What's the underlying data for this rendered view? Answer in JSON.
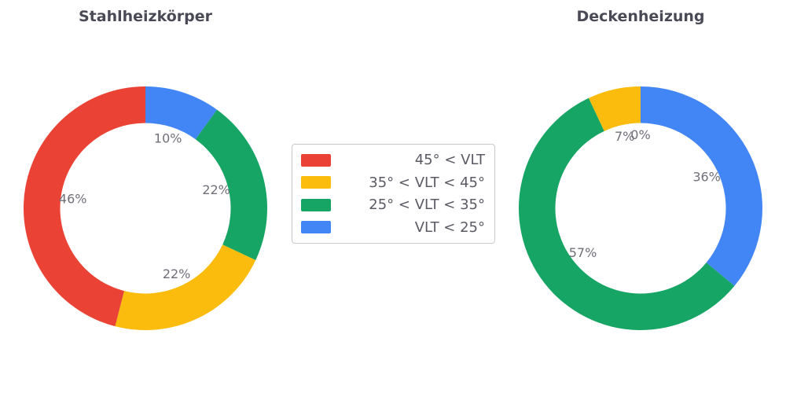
{
  "colors": {
    "red": "#EA4335",
    "yellow": "#FBBC0D",
    "green": "#16A565",
    "blue": "#4285F4",
    "title_text": "#4a4a57",
    "label_text": "#6f6f79",
    "legend_border": "#c9c9c9"
  },
  "legend": {
    "position": "center-between-charts",
    "items": [
      {
        "label": "45° < VLT",
        "color": "red"
      },
      {
        "label": "35° < VLT < 45°",
        "color": "yellow"
      },
      {
        "label": "25° < VLT < 35°",
        "color": "green"
      },
      {
        "label": "VLT < 25°",
        "color": "blue"
      }
    ]
  },
  "chart_data": [
    {
      "type": "pie",
      "subtype": "donut",
      "title": "Stahlheizkörper",
      "hole_ratio": 0.7,
      "start_angle": "12-oclock",
      "direction": "clockwise",
      "slices": [
        {
          "legend": "VLT < 25°",
          "color": "blue",
          "value": 10,
          "label": "10%"
        },
        {
          "legend": "25° < VLT < 35°",
          "color": "green",
          "value": 22,
          "label": "22%"
        },
        {
          "legend": "35° < VLT < 45°",
          "color": "yellow",
          "value": 22,
          "label": "22%"
        },
        {
          "legend": "45° < VLT",
          "color": "red",
          "value": 46,
          "label": "46%"
        }
      ]
    },
    {
      "type": "pie",
      "subtype": "donut",
      "title": "Deckenheizung",
      "hole_ratio": 0.7,
      "start_angle": "12-oclock",
      "direction": "clockwise",
      "slices": [
        {
          "legend": "VLT < 25°",
          "color": "blue",
          "value": 36,
          "label": "36%"
        },
        {
          "legend": "25° < VLT < 35°",
          "color": "green",
          "value": 57,
          "label": "57%"
        },
        {
          "legend": "35° < VLT < 45°",
          "color": "yellow",
          "value": 7,
          "label": "7%"
        },
        {
          "legend": "45° < VLT",
          "color": "red",
          "value": 0,
          "label": "0%"
        }
      ]
    }
  ]
}
